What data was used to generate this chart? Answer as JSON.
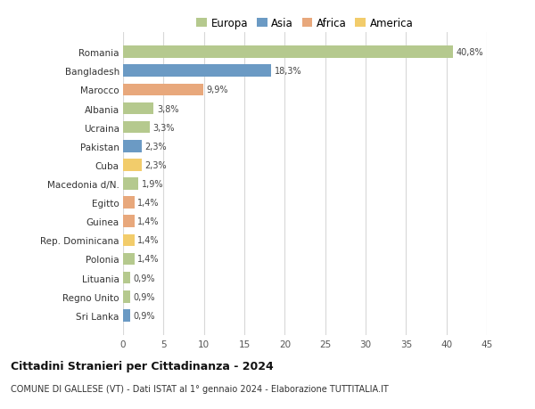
{
  "categories": [
    "Romania",
    "Bangladesh",
    "Marocco",
    "Albania",
    "Ucraina",
    "Pakistan",
    "Cuba",
    "Macedonia d/N.",
    "Egitto",
    "Guinea",
    "Rep. Dominicana",
    "Polonia",
    "Lituania",
    "Regno Unito",
    "Sri Lanka"
  ],
  "values": [
    40.8,
    18.3,
    9.9,
    3.8,
    3.3,
    2.3,
    2.3,
    1.9,
    1.4,
    1.4,
    1.4,
    1.4,
    0.9,
    0.9,
    0.9
  ],
  "labels": [
    "40,8%",
    "18,3%",
    "9,9%",
    "3,8%",
    "3,3%",
    "2,3%",
    "2,3%",
    "1,9%",
    "1,4%",
    "1,4%",
    "1,4%",
    "1,4%",
    "0,9%",
    "0,9%",
    "0,9%"
  ],
  "bar_colors_list": [
    "#b5c98e",
    "#6b9ac4",
    "#e8a87c",
    "#b5c98e",
    "#b5c98e",
    "#6b9ac4",
    "#f2cc6b",
    "#b5c98e",
    "#e8a87c",
    "#e8a87c",
    "#f2cc6b",
    "#b5c98e",
    "#b5c98e",
    "#b5c98e",
    "#6b9ac4"
  ],
  "legend_colors": {
    "Europa": "#b5c98e",
    "Asia": "#6b9ac4",
    "Africa": "#e8a87c",
    "America": "#f2cc6b"
  },
  "xlim": [
    0,
    45
  ],
  "xticks": [
    0,
    5,
    10,
    15,
    20,
    25,
    30,
    35,
    40,
    45
  ],
  "title": "Cittadini Stranieri per Cittadinanza - 2024",
  "subtitle": "COMUNE DI GALLESE (VT) - Dati ISTAT al 1° gennaio 2024 - Elaborazione TUTTITALIA.IT",
  "background_color": "#ffffff",
  "grid_color": "#d8d8d8",
  "legend_order": [
    "Europa",
    "Asia",
    "Africa",
    "America"
  ]
}
